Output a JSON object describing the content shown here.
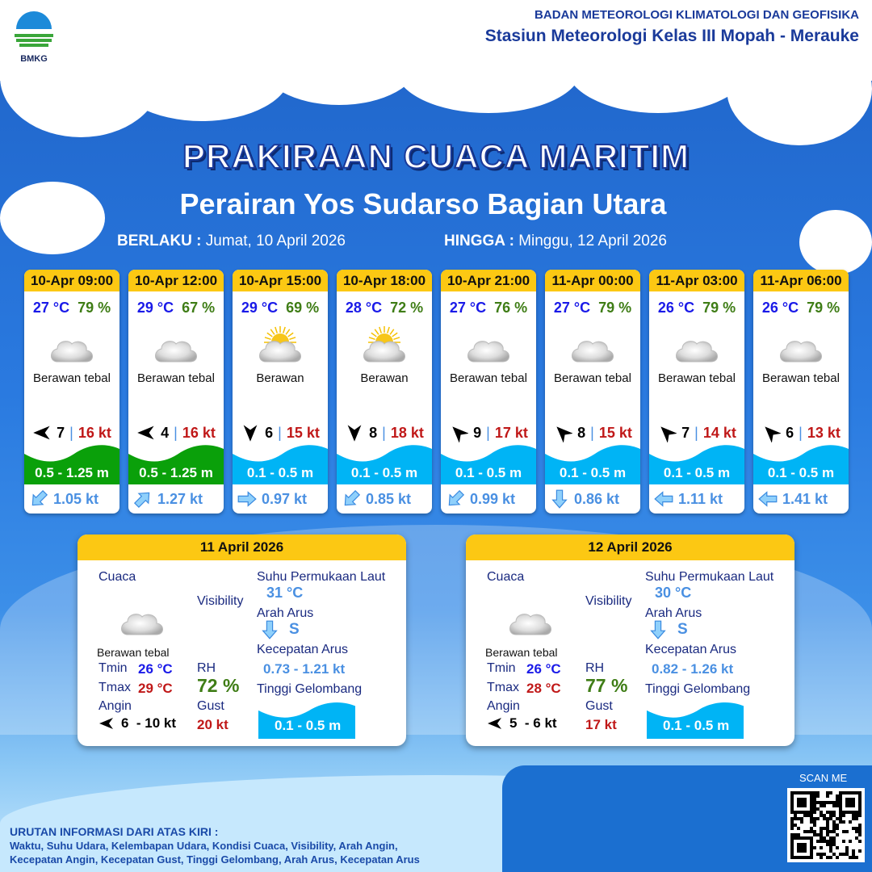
{
  "header": {
    "org": "BADAN METEOROLOGI KLIMATOLOGI DAN GEOFISIKA",
    "station": "Stasiun Meteorologi Kelas III Mopah - Merauke",
    "logo_text": "BMKG"
  },
  "title": "PRAKIRAAN CUACA MARITIM",
  "subtitle": "Perairan Yos Sudarso Bagian Utara",
  "validity": {
    "from_label": "BERLAKU :",
    "from": "Jumat, 10 April 2026",
    "to_label": "HINGGA :",
    "to": "Minggu, 12 April 2026"
  },
  "colors": {
    "header_yellow": "#fcc813",
    "wave_green": "#0aa00a",
    "wave_blue": "#00b4f5",
    "temp_blue": "#1a1ae8",
    "rh_green": "#3f7d16",
    "gust_red": "#c01818"
  },
  "forecasts": [
    {
      "time": "10-Apr 09:00",
      "temp": "27 °C",
      "rh": "79 %",
      "icon": "cloud-icon",
      "cond": "Berawan tebal",
      "wind_dir_deg": 270,
      "wind": "7",
      "gust": "16 kt",
      "wave": "0.5 - 1.25 m",
      "wave_color": "#0aa00a",
      "cur_dir_deg": 225,
      "current": "1.05 kt"
    },
    {
      "time": "10-Apr 12:00",
      "temp": "29 °C",
      "rh": "67 %",
      "icon": "cloud-icon",
      "cond": "Berawan tebal",
      "wind_dir_deg": 270,
      "wind": "4",
      "gust": "16 kt",
      "wave": "0.5 - 1.25 m",
      "wave_color": "#0aa00a",
      "cur_dir_deg": 45,
      "current": "1.27 kt"
    },
    {
      "time": "10-Apr 15:00",
      "temp": "29 °C",
      "rh": "69 %",
      "icon": "sun-cloud-icon",
      "cond": "Berawan",
      "wind_dir_deg": 180,
      "wind": "6",
      "gust": "15 kt",
      "wave": "0.1 - 0.5 m",
      "wave_color": "#00b4f5",
      "cur_dir_deg": 90,
      "current": "0.97 kt"
    },
    {
      "time": "10-Apr 18:00",
      "temp": "28 °C",
      "rh": "72 %",
      "icon": "sun-cloud-icon",
      "cond": "Berawan",
      "wind_dir_deg": 180,
      "wind": "8",
      "gust": "18 kt",
      "wave": "0.1 - 0.5 m",
      "wave_color": "#00b4f5",
      "cur_dir_deg": 225,
      "current": "0.85 kt"
    },
    {
      "time": "10-Apr 21:00",
      "temp": "27 °C",
      "rh": "76 %",
      "icon": "cloud-icon",
      "cond": "Berawan tebal",
      "wind_dir_deg": 315,
      "wind": "9",
      "gust": "17 kt",
      "wave": "0.1 - 0.5 m",
      "wave_color": "#00b4f5",
      "cur_dir_deg": 225,
      "current": "0.99 kt"
    },
    {
      "time": "11-Apr 00:00",
      "temp": "27 °C",
      "rh": "79 %",
      "icon": "cloud-icon",
      "cond": "Berawan tebal",
      "wind_dir_deg": 315,
      "wind": "8",
      "gust": "15 kt",
      "wave": "0.1 - 0.5 m",
      "wave_color": "#00b4f5",
      "cur_dir_deg": 180,
      "current": "0.86 kt"
    },
    {
      "time": "11-Apr 03:00",
      "temp": "26 °C",
      "rh": "79 %",
      "icon": "cloud-icon",
      "cond": "Berawan tebal",
      "wind_dir_deg": 315,
      "wind": "7",
      "gust": "14 kt",
      "wave": "0.1 - 0.5 m",
      "wave_color": "#00b4f5",
      "cur_dir_deg": 270,
      "current": "1.11 kt"
    },
    {
      "time": "11-Apr 06:00",
      "temp": "26 °C",
      "rh": "79 %",
      "icon": "cloud-icon",
      "cond": "Berawan tebal",
      "wind_dir_deg": 315,
      "wind": "6",
      "gust": "13 kt",
      "wave": "0.1 - 0.5 m",
      "wave_color": "#00b4f5",
      "cur_dir_deg": 270,
      "current": "1.41 kt"
    }
  ],
  "labels": {
    "cuaca": "Cuaca",
    "visibility": "Visibility",
    "sst": "Suhu Permukaan Laut",
    "arah_arus": "Arah Arus",
    "kec_arus": "Kecepatan Arus",
    "tinggi": "Tinggi Gelombang",
    "tmin": "Tmin",
    "tmax": "Tmax",
    "rh": "RH",
    "angin": "Angin",
    "gust": "Gust"
  },
  "daily": [
    {
      "date": "11 April 2026",
      "cond": "Berawan tebal",
      "tmin": "26 °C",
      "tmax": "29 °C",
      "rh": "72 %",
      "wind": "6  - 10 kt",
      "wind_dir_deg": 270,
      "gust": "20 kt",
      "sst": "31 °C",
      "cur_dir": "S",
      "cur_dir_deg": 180,
      "cur_speed": "0.73 - 1.21 kt",
      "wave": "0.1 - 0.5 m"
    },
    {
      "date": "12 April 2026",
      "cond": "Berawan tebal",
      "tmin": "26 °C",
      "tmax": "28 °C",
      "rh": "77 %",
      "wind": "5  - 6 kt",
      "wind_dir_deg": 270,
      "gust": "17 kt",
      "sst": "30 °C",
      "cur_dir": "S",
      "cur_dir_deg": 180,
      "cur_speed": "0.82 - 1.26 kt",
      "wave": "0.1 - 0.5 m"
    }
  ],
  "footer": {
    "heading": "URUTAN INFORMASI DARI ATAS KIRI :",
    "line1": "Waktu, Suhu Udara, Kelembapan Udara, Kondisi Cuaca, Visibility, Arah Angin,",
    "line2": "Kecepatan Angin, Kecepatan Gust, Tinggi Gelombang, Arah Arus, Kecepatan Arus"
  },
  "qr": {
    "label": "SCAN ME"
  }
}
